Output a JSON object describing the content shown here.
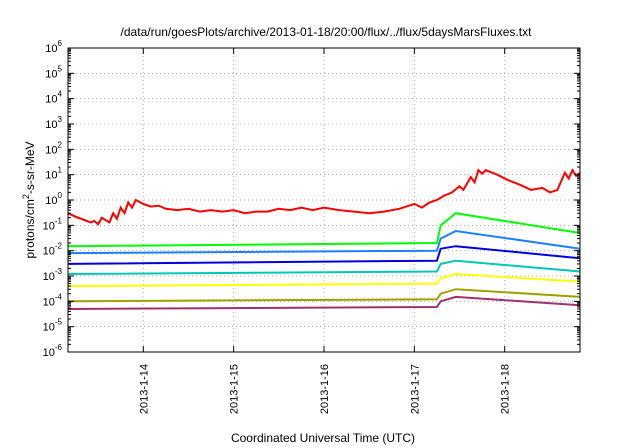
{
  "chart_data": {
    "type": "line",
    "title": "/data/run/goesPlots/archive/2013-01-18/20:00/flux/../flux/5daysMarsFluxes.txt",
    "xlabel": "Coordinated Universal Time (UTC)",
    "ylabel_prefix": "protons/cm",
    "ylabel_sup": "2",
    "ylabel_suffix": "-s-sr-MeV",
    "x_range_days": [
      "2013-01-13T04:00",
      "2013-01-18T20:00"
    ],
    "x_ticks": [
      "2013-1-14",
      "2013-1-15",
      "2013-1-16",
      "2013-1-17",
      "2013-1-18"
    ],
    "y_scale": "log",
    "y_ticks": [
      {
        "base": "10",
        "exp": "-6"
      },
      {
        "base": "10",
        "exp": "-5"
      },
      {
        "base": "10",
        "exp": "-4"
      },
      {
        "base": "10",
        "exp": "-3"
      },
      {
        "base": "10",
        "exp": "-2"
      },
      {
        "base": "10",
        "exp": "-1"
      },
      {
        "base": "10",
        "exp": "0"
      },
      {
        "base": "10",
        "exp": "1"
      },
      {
        "base": "10",
        "exp": "2"
      },
      {
        "base": "10",
        "exp": "3"
      },
      {
        "base": "10",
        "exp": "4"
      },
      {
        "base": "10",
        "exp": "5"
      },
      {
        "base": "10",
        "exp": "6"
      }
    ],
    "grid": true,
    "series": [
      {
        "color": "#ff0000",
        "values": [
          [
            "2013-01-13T04:00",
            0.3
          ],
          [
            "2013-01-13T06:00",
            0.22
          ],
          [
            "2013-01-13T08:00",
            0.17
          ],
          [
            "2013-01-13T10:00",
            0.13
          ],
          [
            "2013-01-13T11:00",
            0.15
          ],
          [
            "2013-01-13T12:00",
            0.11
          ],
          [
            "2013-01-13T13:00",
            0.2
          ],
          [
            "2013-01-13T14:00",
            0.16
          ],
          [
            "2013-01-13T15:00",
            0.13
          ],
          [
            "2013-01-13T16:00",
            0.3
          ],
          [
            "2013-01-13T17:00",
            0.18
          ],
          [
            "2013-01-13T18:00",
            0.5
          ],
          [
            "2013-01-13T19:00",
            0.3
          ],
          [
            "2013-01-13T20:00",
            0.8
          ],
          [
            "2013-01-13T21:00",
            0.5
          ],
          [
            "2013-01-13T22:00",
            1.0
          ],
          [
            "2013-01-14T00:00",
            0.7
          ],
          [
            "2013-01-14T02:00",
            0.55
          ],
          [
            "2013-01-14T04:00",
            0.6
          ],
          [
            "2013-01-14T06:00",
            0.45
          ],
          [
            "2013-01-14T09:00",
            0.4
          ],
          [
            "2013-01-14T12:00",
            0.45
          ],
          [
            "2013-01-14T15:00",
            0.35
          ],
          [
            "2013-01-14T18:00",
            0.4
          ],
          [
            "2013-01-14T21:00",
            0.35
          ],
          [
            "2013-01-15T00:00",
            0.4
          ],
          [
            "2013-01-15T03:00",
            0.3
          ],
          [
            "2013-01-15T06:00",
            0.35
          ],
          [
            "2013-01-15T09:00",
            0.35
          ],
          [
            "2013-01-15T12:00",
            0.45
          ],
          [
            "2013-01-15T15:00",
            0.4
          ],
          [
            "2013-01-15T18:00",
            0.5
          ],
          [
            "2013-01-15T21:00",
            0.4
          ],
          [
            "2013-01-16T00:00",
            0.5
          ],
          [
            "2013-01-16T04:00",
            0.4
          ],
          [
            "2013-01-16T08:00",
            0.35
          ],
          [
            "2013-01-16T12:00",
            0.3
          ],
          [
            "2013-01-16T16:00",
            0.35
          ],
          [
            "2013-01-16T20:00",
            0.45
          ],
          [
            "2013-01-17T00:00",
            0.7
          ],
          [
            "2013-01-17T02:00",
            0.5
          ],
          [
            "2013-01-17T04:00",
            0.8
          ],
          [
            "2013-01-17T06:00",
            1.0
          ],
          [
            "2013-01-17T08:00",
            1.5
          ],
          [
            "2013-01-17T10:00",
            2.0
          ],
          [
            "2013-01-17T12:00",
            3.5
          ],
          [
            "2013-01-17T13:00",
            2.5
          ],
          [
            "2013-01-17T15:00",
            8
          ],
          [
            "2013-01-17T16:00",
            5
          ],
          [
            "2013-01-17T17:00",
            15
          ],
          [
            "2013-01-17T18:00",
            11
          ],
          [
            "2013-01-17T19:00",
            15
          ],
          [
            "2013-01-17T22:00",
            10
          ],
          [
            "2013-01-18T01:00",
            6
          ],
          [
            "2013-01-18T04:00",
            4
          ],
          [
            "2013-01-18T07:00",
            2.5
          ],
          [
            "2013-01-18T10:00",
            3
          ],
          [
            "2013-01-18T12:00",
            2.0
          ],
          [
            "2013-01-18T14:00",
            2.5
          ],
          [
            "2013-01-18T16:00",
            12
          ],
          [
            "2013-01-18T17:00",
            7
          ],
          [
            "2013-01-18T18:00",
            15
          ],
          [
            "2013-01-18T19:00",
            9
          ],
          [
            "2013-01-18T20:00",
            12
          ]
        ]
      },
      {
        "color": "#00ff00",
        "values": [
          [
            "2013-01-13T04:00",
            0.015
          ],
          [
            "2013-01-17T06:00",
            0.02
          ],
          [
            "2013-01-17T07:00",
            0.1
          ],
          [
            "2013-01-17T11:00",
            0.3
          ],
          [
            "2013-01-18T20:00",
            0.05
          ]
        ]
      },
      {
        "color": "#1e7fff",
        "values": [
          [
            "2013-01-13T04:00",
            0.008
          ],
          [
            "2013-01-17T06:00",
            0.01
          ],
          [
            "2013-01-17T07:00",
            0.03
          ],
          [
            "2013-01-17T11:00",
            0.06
          ],
          [
            "2013-01-18T20:00",
            0.012
          ]
        ]
      },
      {
        "color": "#0000dd",
        "values": [
          [
            "2013-01-13T04:00",
            0.003
          ],
          [
            "2013-01-17T06:00",
            0.004
          ],
          [
            "2013-01-17T07:00",
            0.012
          ],
          [
            "2013-01-17T11:00",
            0.015
          ],
          [
            "2013-01-18T20:00",
            0.005
          ]
        ]
      },
      {
        "color": "#00c8b4",
        "values": [
          [
            "2013-01-13T04:00",
            0.0012
          ],
          [
            "2013-01-17T06:00",
            0.0015
          ],
          [
            "2013-01-17T07:00",
            0.003
          ],
          [
            "2013-01-17T11:00",
            0.004
          ],
          [
            "2013-01-18T20:00",
            0.0015
          ]
        ]
      },
      {
        "color": "#ffff00",
        "values": [
          [
            "2013-01-13T04:00",
            0.0004
          ],
          [
            "2013-01-17T06:00",
            0.0005
          ],
          [
            "2013-01-17T07:00",
            0.0008
          ],
          [
            "2013-01-17T11:00",
            0.0012
          ],
          [
            "2013-01-18T20:00",
            0.0006
          ]
        ]
      },
      {
        "color": "#a0a000",
        "values": [
          [
            "2013-01-13T04:00",
            0.0001
          ],
          [
            "2013-01-17T06:00",
            0.00012
          ],
          [
            "2013-01-17T07:00",
            0.0002
          ],
          [
            "2013-01-17T11:00",
            0.0003
          ],
          [
            "2013-01-18T20:00",
            0.00015
          ]
        ]
      },
      {
        "color": "#a0306e",
        "values": [
          [
            "2013-01-13T04:00",
            5e-05
          ],
          [
            "2013-01-17T06:00",
            6e-05
          ],
          [
            "2013-01-17T07:00",
            0.0001
          ],
          [
            "2013-01-17T11:00",
            0.00015
          ],
          [
            "2013-01-18T20:00",
            7e-05
          ]
        ]
      }
    ]
  }
}
